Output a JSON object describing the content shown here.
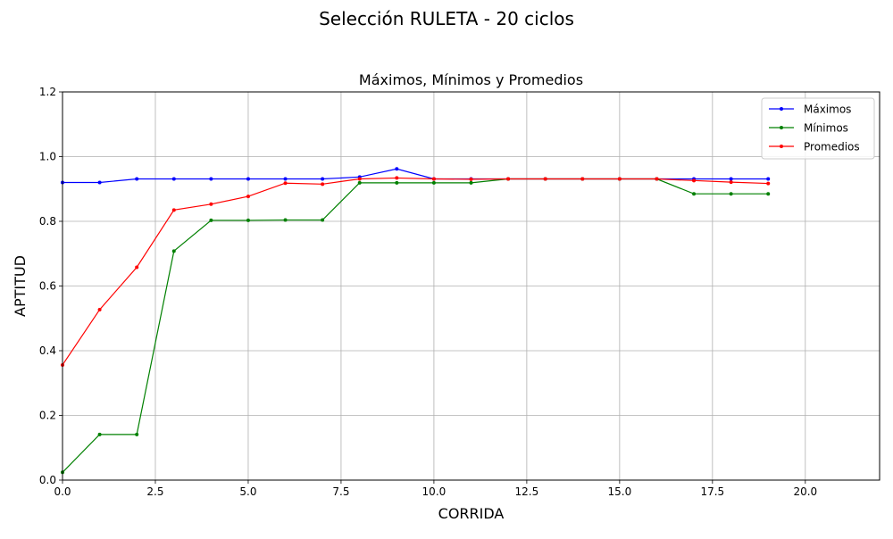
{
  "figure": {
    "suptitle": "Selección RULETA - 20 ciclos"
  },
  "chart_data": {
    "type": "line",
    "title": "Máximos, Mínimos y Promedios",
    "xlabel": "CORRIDA",
    "ylabel": "APTITUD",
    "xlim": [
      0,
      22
    ],
    "ylim": [
      0,
      1.2
    ],
    "xticks": [
      0.0,
      2.5,
      5.0,
      7.5,
      10.0,
      12.5,
      15.0,
      17.5,
      20.0
    ],
    "xtick_labels": [
      "0.0",
      "2.5",
      "5.0",
      "7.5",
      "10.0",
      "12.5",
      "15.0",
      "17.5",
      "20.0"
    ],
    "yticks": [
      0.0,
      0.2,
      0.4,
      0.6,
      0.8,
      1.0,
      1.2
    ],
    "ytick_labels": [
      "0.0",
      "0.2",
      "0.4",
      "0.6",
      "0.8",
      "1.0",
      "1.2"
    ],
    "grid": true,
    "legend_position": "top-right",
    "x": [
      0,
      1,
      2,
      3,
      4,
      5,
      6,
      7,
      8,
      9,
      10,
      11,
      12,
      13,
      14,
      15,
      16,
      17,
      18,
      19
    ],
    "series": [
      {
        "name": "Máximos",
        "color": "#0000ff",
        "values": [
          0.92,
          0.92,
          0.931,
          0.931,
          0.931,
          0.931,
          0.931,
          0.931,
          0.937,
          0.962,
          0.931,
          0.931,
          0.931,
          0.931,
          0.931,
          0.931,
          0.931,
          0.931,
          0.931,
          0.931
        ]
      },
      {
        "name": "Mínimos",
        "color": "#008000",
        "values": [
          0.024,
          0.141,
          0.141,
          0.708,
          0.803,
          0.803,
          0.804,
          0.804,
          0.919,
          0.919,
          0.919,
          0.919,
          0.931,
          0.931,
          0.931,
          0.931,
          0.931,
          0.885,
          0.885,
          0.885
        ]
      },
      {
        "name": "Promedios",
        "color": "#ff0000",
        "values": [
          0.356,
          0.527,
          0.658,
          0.835,
          0.853,
          0.877,
          0.918,
          0.915,
          0.931,
          0.934,
          0.931,
          0.93,
          0.931,
          0.931,
          0.931,
          0.931,
          0.931,
          0.926,
          0.921,
          0.917
        ]
      }
    ]
  }
}
